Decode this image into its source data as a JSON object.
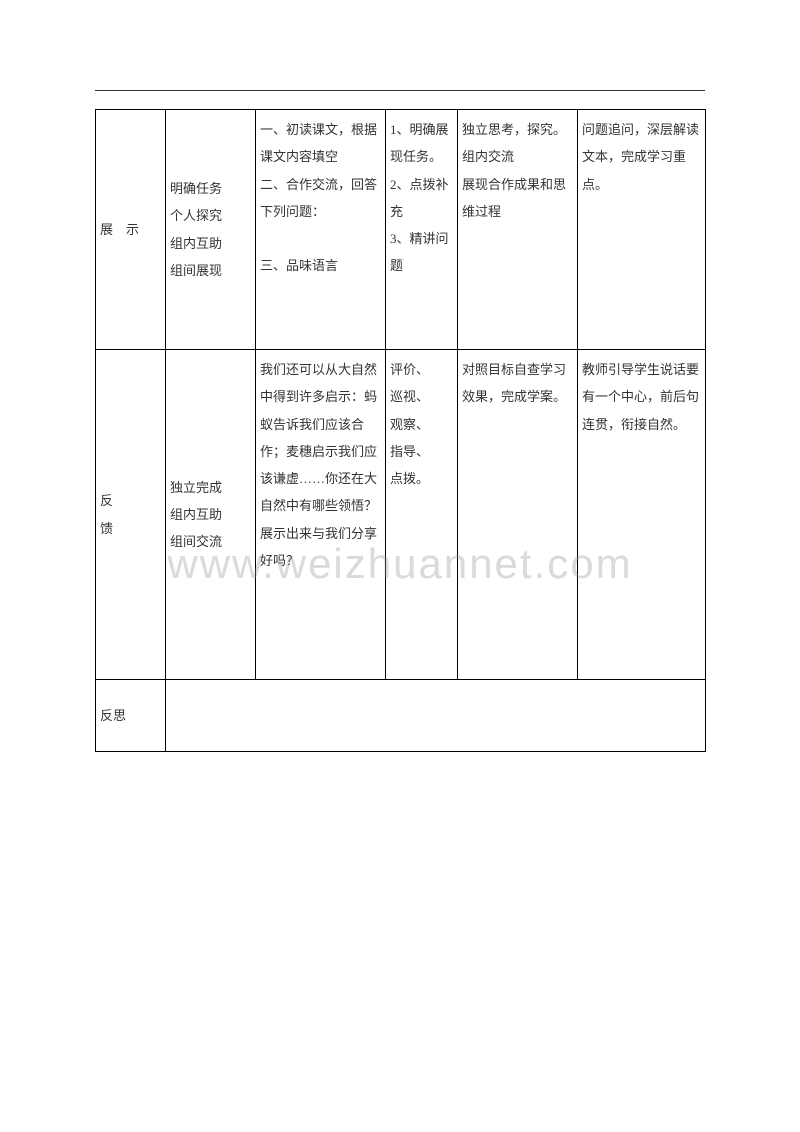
{
  "watermark": "www.weizhuannet.com",
  "table": {
    "rows": [
      {
        "col1": "展　示",
        "col2": "明确任务\n个人探究\n组内互助\n组间展现",
        "col3": "一、初读课文，根据课文内容填空\n二、合作交流，回答下列问题：\n\n三、品味语言",
        "col4": "1、明确展现任务。\n2、点拨补充\n3、精讲问题",
        "col5": "独立思考，探究。\n组内交流\n展现合作成果和思维过程",
        "col6": "问题追问，深层解读文本，完成学习重点。"
      },
      {
        "col1": "反\n馈",
        "col2": "独立完成\n组内互助\n组间交流",
        "col3": "我们还可以从大自然中得到许多启示：蚂蚁告诉我们应该合作；麦穗启示我们应该谦虚……你还在大自然中有哪些领悟？展示出来与我们分享好吗？",
        "col4": "评价、\n巡视、\n观察、\n指导、\n点拨。",
        "col5": "对照目标自查学习效果，完成学案。",
        "col6": "教师引导学生说话要有一个中心，前后句连贯，衔接自然。"
      },
      {
        "col1": "反思",
        "merged": ""
      }
    ]
  }
}
